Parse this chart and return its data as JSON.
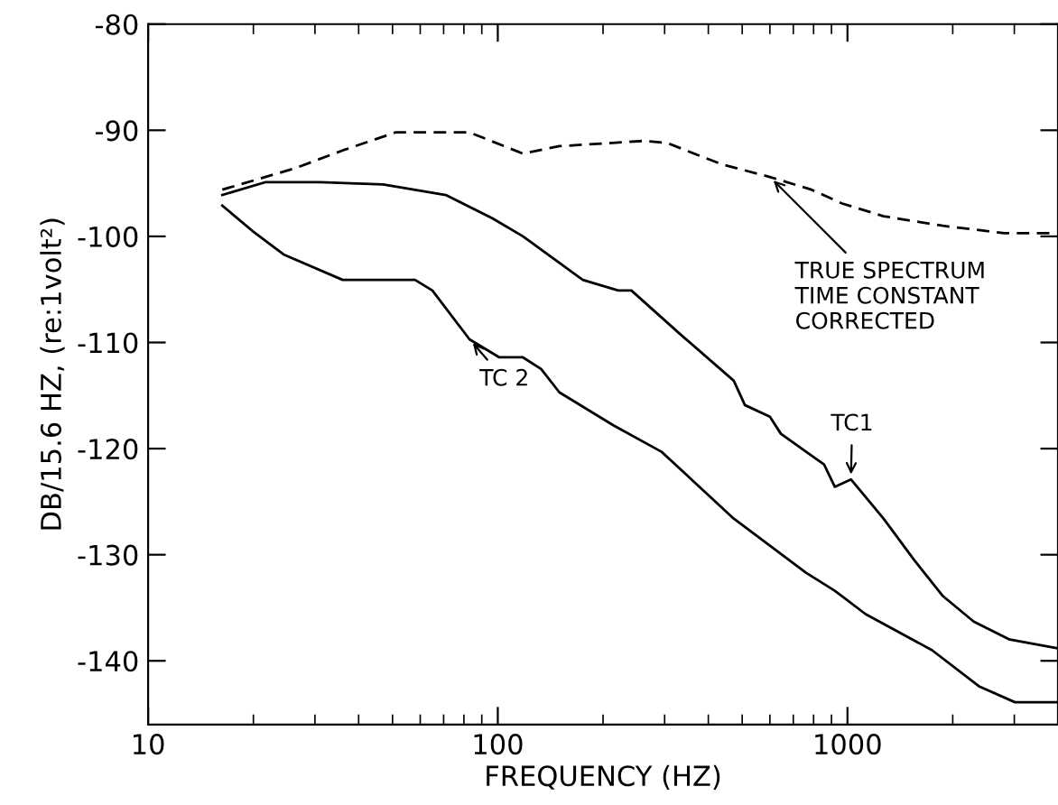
{
  "chart_data": {
    "type": "line",
    "xlabel": "FREQUENCY (HZ)",
    "ylabel": "DB/15.6 HZ, (re:1volt²)",
    "log": "x",
    "xlim": [
      10,
      4000
    ],
    "ylim": [
      -146,
      -80
    ],
    "xticks": [
      10,
      100,
      1000
    ],
    "yticks": [
      -80,
      -90,
      -100,
      -110,
      -120,
      -130,
      -140
    ],
    "grid": false,
    "legend": false,
    "marker": "none",
    "series": [
      {
        "color": "#000000",
        "line_style": "dashed",
        "x": [
          16.3,
          26.2,
          36,
          51,
          83,
          118,
          150,
          262,
          305,
          436,
          600,
          789,
          966,
          1268,
          1875,
          2806,
          3960
        ],
        "values": [
          -95.6,
          -93.6,
          -91.9,
          -90.2,
          -90.2,
          -92.2,
          -91.5,
          -91,
          -91.2,
          -93.2,
          -94.4,
          -95.6,
          -96.9,
          -98.1,
          -99,
          -99.7,
          -99.7
        ]
      },
      {
        "color": "#000000",
        "line_style": "solid",
        "x": [
          16.3,
          21.6,
          31,
          47,
          71,
          96.6,
          118,
          175,
          221,
          241,
          332,
          473,
          509,
          600,
          645,
          857,
          920,
          1023,
          1268,
          1552,
          1875,
          2296,
          2911,
          3960
        ],
        "values": [
          -96.1,
          -94.9,
          -94.9,
          -95.1,
          -96.1,
          -98.3,
          -100,
          -104.1,
          -105.1,
          -105.1,
          -109.2,
          -113.6,
          -115.9,
          -117,
          -118.6,
          -121.5,
          -123.6,
          -122.9,
          -126.6,
          -130.5,
          -133.9,
          -136.3,
          -138,
          -138.8
        ]
      },
      {
        "color": "#000000",
        "line_style": "solid",
        "x": [
          16.3,
          19.9,
          24.4,
          36,
          58,
          65,
          83,
          101,
          118,
          133,
          150,
          214,
          294,
          473,
          761,
          920,
          1127,
          1746,
          2377,
          3013,
          3960
        ],
        "values": [
          -97.1,
          -99.5,
          -101.7,
          -104.1,
          -104.1,
          -105.1,
          -109.7,
          -111.4,
          -111.4,
          -112.5,
          -114.7,
          -117.8,
          -120.3,
          -126.6,
          -131.7,
          -133.4,
          -135.6,
          -139,
          -142.4,
          -143.9,
          -143.9
        ]
      }
    ],
    "annotations": [
      {
        "text": "TRUE SPECTRUM\nTIME CONSTANT\nCORRECTED",
        "x": 600,
        "y": -94.4
      },
      {
        "text": "TC 2",
        "x": 83,
        "y": -109.7
      },
      {
        "text": "TC1",
        "x": 1023,
        "y": -122.9
      }
    ]
  }
}
